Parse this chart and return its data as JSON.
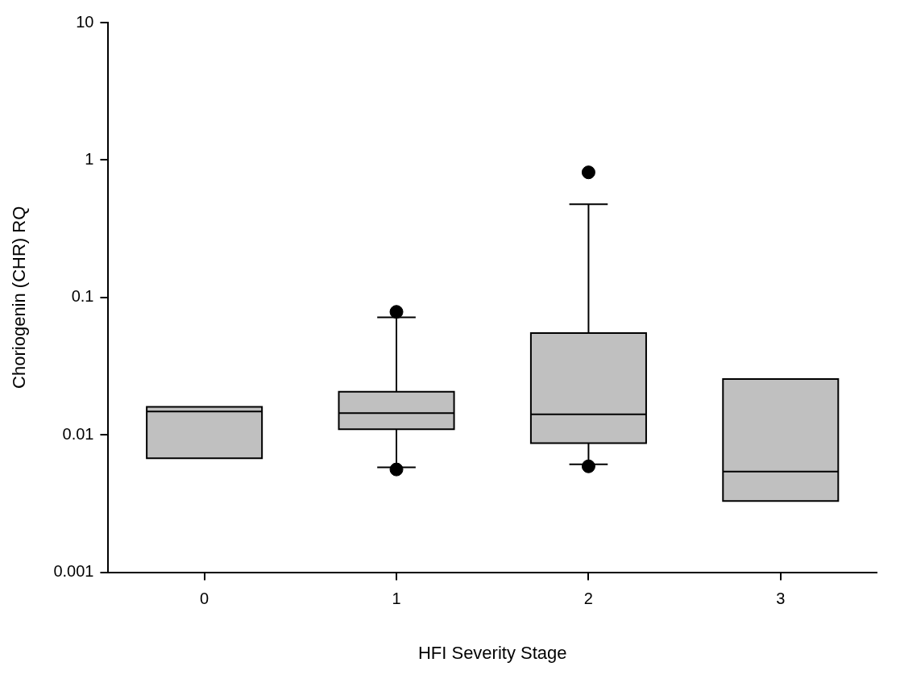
{
  "chart_data": {
    "type": "box",
    "xlabel": "HFI Severity Stage",
    "ylabel": "Choriogenin (CHR) RQ",
    "categories": [
      "0",
      "1",
      "2",
      "3"
    ],
    "color": "#c0c0c0",
    "log": true,
    "ylim": [
      0.001,
      10
    ],
    "yticks": [
      0.001,
      0.01,
      0.1,
      1,
      10
    ],
    "grid": false,
    "legend": false,
    "boxes": [
      {
        "low": 0.00675,
        "q1": 0.00675,
        "median": 0.0148,
        "q3": 0.016,
        "high": 0.016
      },
      {
        "low": 0.0058,
        "q1": 0.011,
        "median": 0.0144,
        "q3": 0.0206,
        "high": 0.0716,
        "outliers": [
          0.0785,
          0.0056
        ]
      },
      {
        "low": 0.0061,
        "q1": 0.0087,
        "median": 0.0141,
        "q3": 0.0551,
        "high": 0.476,
        "outliers": [
          0.813,
          0.0059
        ]
      },
      {
        "low": 0.0033,
        "q1": 0.0033,
        "median": 0.0054,
        "q3": 0.0255,
        "high": 0.0255
      }
    ]
  }
}
